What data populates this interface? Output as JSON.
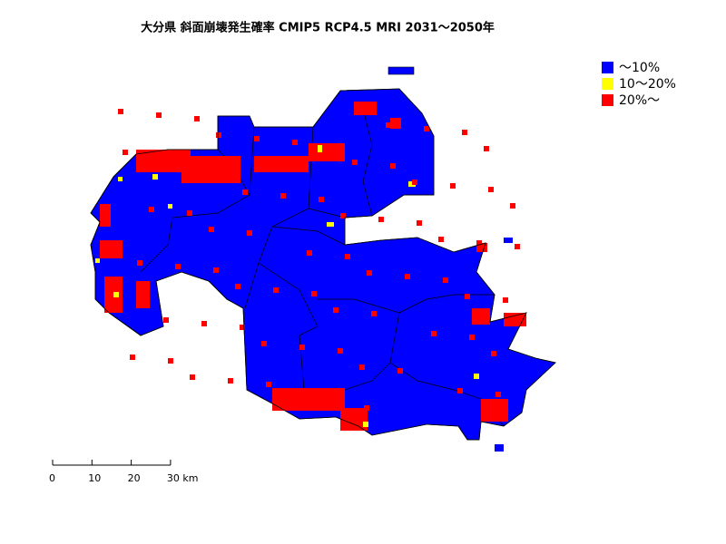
{
  "title": "大分県 斜面崩壊発生確率 CMIP5 RCP4.5 MRI 2031～2050年",
  "legend": {
    "items": [
      {
        "label": "～10%",
        "color": "#0000ff"
      },
      {
        "label": "10～20%",
        "color": "#ffff00"
      },
      {
        "label": "20%～",
        "color": "#ff0000"
      }
    ]
  },
  "scale_bar": {
    "labels": [
      "0",
      "10",
      "20",
      "30 km"
    ]
  }
}
